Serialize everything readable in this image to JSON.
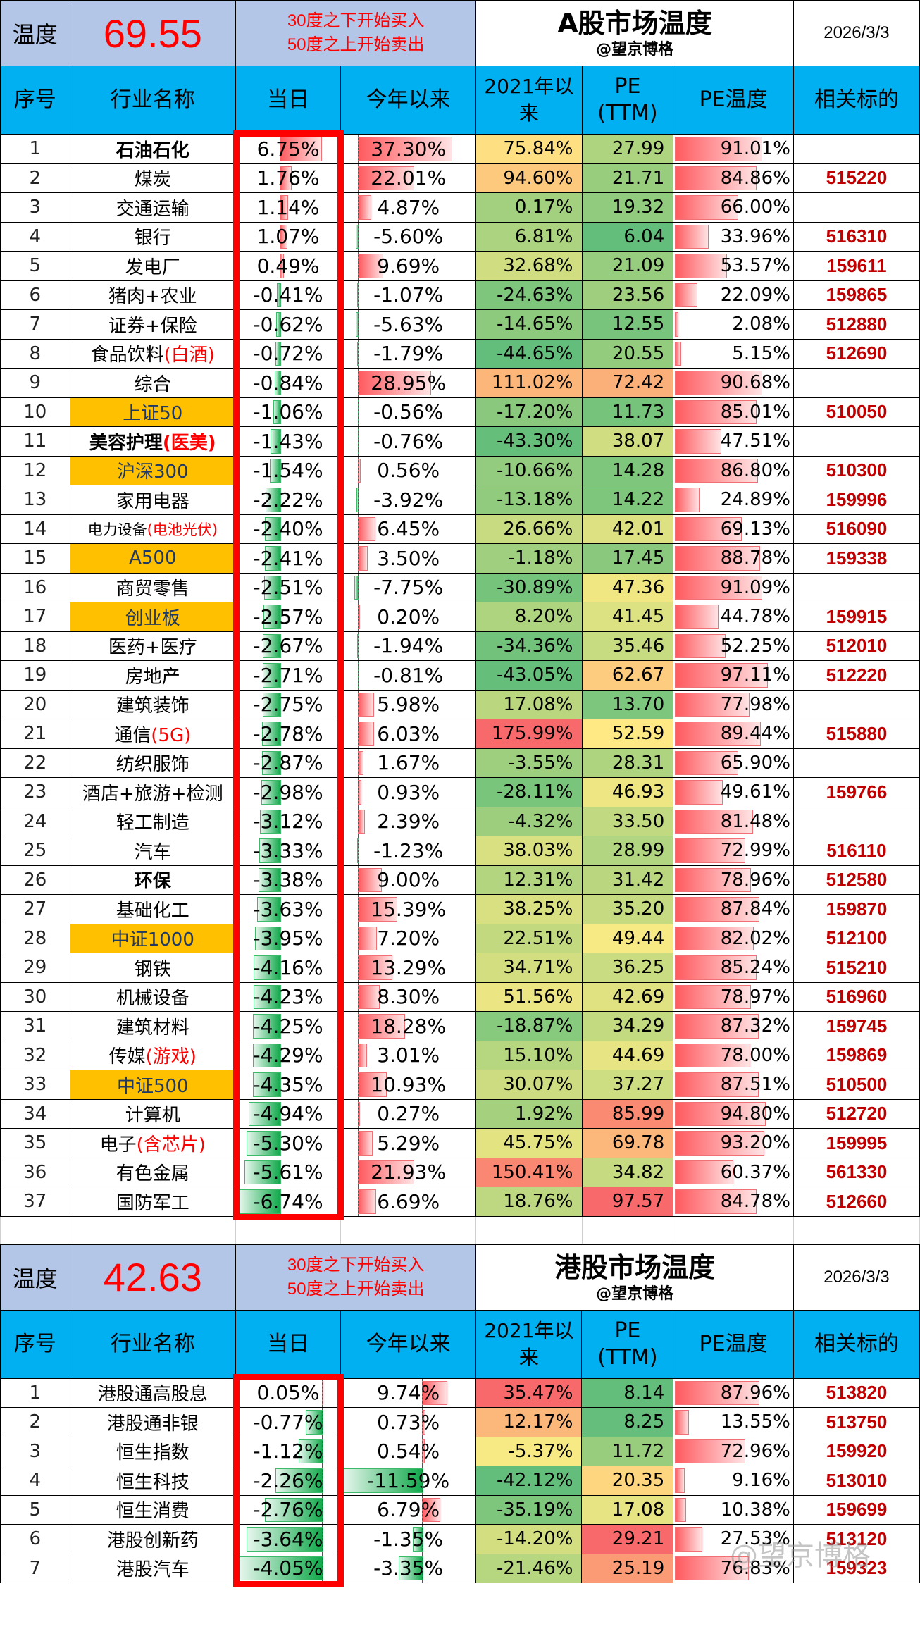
{
  "a_share": {
    "temperature_label": "温度",
    "temperature_value": "69.55",
    "rule_line1": "30度之下开始买入",
    "rule_line2": "50度之上开始卖出",
    "title": "A股市场温度",
    "subtitle": "@望京博格",
    "date": "2026/3/3",
    "headers": {
      "index": "序号",
      "name": "行业名称",
      "daily": "当日",
      "ytd": "今年以来",
      "since2021_a": "2021年以",
      "since2021_b": "来",
      "pe_a": "PE",
      "pe_b": "(TTM)",
      "pe_temp": "PE温度",
      "ticker": "相关标的"
    },
    "rows": [
      {
        "idx": "1",
        "name": "石油石化",
        "hl": "",
        "style": "bold",
        "daily": "6.75%",
        "ytd": "37.30%",
        "since2021": "75.84%",
        "pe": "27.99",
        "pe_temp": "91.01%",
        "ticker": ""
      },
      {
        "idx": "2",
        "name": "煤炭",
        "hl": "",
        "style": "",
        "daily": "1.76%",
        "ytd": "22.01%",
        "since2021": "94.60%",
        "pe": "21.71",
        "pe_temp": "84.86%",
        "ticker": "515220"
      },
      {
        "idx": "3",
        "name": "交通运输",
        "hl": "",
        "style": "",
        "daily": "1.14%",
        "ytd": "4.87%",
        "since2021": "0.17%",
        "pe": "19.32",
        "pe_temp": "66.00%",
        "ticker": ""
      },
      {
        "idx": "4",
        "name": "银行",
        "hl": "",
        "style": "",
        "daily": "1.07%",
        "ytd": "-5.60%",
        "since2021": "6.81%",
        "pe": "6.04",
        "pe_temp": "33.96%",
        "ticker": "516310"
      },
      {
        "idx": "5",
        "name": "发电厂",
        "hl": "",
        "style": "",
        "daily": "0.49%",
        "ytd": "9.69%",
        "since2021": "32.68%",
        "pe": "21.09",
        "pe_temp": "53.57%",
        "ticker": "159611"
      },
      {
        "idx": "6",
        "name": "猪肉+农业",
        "hl": "",
        "style": "",
        "daily": "-0.41%",
        "ytd": "-1.07%",
        "since2021": "-24.63%",
        "pe": "23.56",
        "pe_temp": "22.09%",
        "ticker": "159865"
      },
      {
        "idx": "7",
        "name": "证券+保险",
        "hl": "",
        "style": "",
        "daily": "-0.62%",
        "ytd": "-5.63%",
        "since2021": "-14.65%",
        "pe": "12.55",
        "pe_temp": "2.08%",
        "ticker": "512880"
      },
      {
        "idx": "8",
        "name": "食品饮料",
        "hl": "(白酒)",
        "style": "",
        "daily": "-0.72%",
        "ytd": "-1.79%",
        "since2021": "-44.65%",
        "pe": "20.55",
        "pe_temp": "5.15%",
        "ticker": "512690"
      },
      {
        "idx": "9",
        "name": "综合",
        "hl": "",
        "style": "",
        "daily": "-0.84%",
        "ytd": "28.95%",
        "since2021": "111.02%",
        "pe": "72.42",
        "pe_temp": "90.68%",
        "ticker": ""
      },
      {
        "idx": "10",
        "name": "上证50",
        "hl": "",
        "style": "index",
        "daily": "-1.06%",
        "ytd": "-0.56%",
        "since2021": "-17.20%",
        "pe": "11.73",
        "pe_temp": "85.01%",
        "ticker": "510050"
      },
      {
        "idx": "11",
        "name": "美容护理",
        "hl": "(医美)",
        "style": "bold",
        "daily": "-1.43%",
        "ytd": "-0.76%",
        "since2021": "-43.30%",
        "pe": "38.07",
        "pe_temp": "47.51%",
        "ticker": ""
      },
      {
        "idx": "12",
        "name": "沪深300",
        "hl": "",
        "style": "index",
        "daily": "-1.54%",
        "ytd": "0.56%",
        "since2021": "-10.66%",
        "pe": "14.28",
        "pe_temp": "86.80%",
        "ticker": "510300"
      },
      {
        "idx": "13",
        "name": "家用电器",
        "hl": "",
        "style": "",
        "daily": "-2.22%",
        "ytd": "-3.92%",
        "since2021": "-13.18%",
        "pe": "14.22",
        "pe_temp": "24.89%",
        "ticker": "159996"
      },
      {
        "idx": "14",
        "name": "电力设备",
        "hl": "(电池光伏)",
        "style": "small",
        "daily": "-2.40%",
        "ytd": "6.45%",
        "since2021": "26.66%",
        "pe": "42.01",
        "pe_temp": "69.13%",
        "ticker": "516090"
      },
      {
        "idx": "15",
        "name": "A500",
        "hl": "",
        "style": "index",
        "daily": "-2.41%",
        "ytd": "3.50%",
        "since2021": "-1.18%",
        "pe": "17.45",
        "pe_temp": "88.78%",
        "ticker": "159338"
      },
      {
        "idx": "16",
        "name": "商贸零售",
        "hl": "",
        "style": "",
        "daily": "-2.51%",
        "ytd": "-7.75%",
        "since2021": "-30.89%",
        "pe": "47.36",
        "pe_temp": "91.09%",
        "ticker": ""
      },
      {
        "idx": "17",
        "name": "创业板",
        "hl": "",
        "style": "index",
        "daily": "-2.57%",
        "ytd": "0.20%",
        "since2021": "8.20%",
        "pe": "41.45",
        "pe_temp": "44.78%",
        "ticker": "159915"
      },
      {
        "idx": "18",
        "name": "医药+医疗",
        "hl": "",
        "style": "",
        "daily": "-2.67%",
        "ytd": "-1.94%",
        "since2021": "-34.36%",
        "pe": "35.46",
        "pe_temp": "52.25%",
        "ticker": "512010"
      },
      {
        "idx": "19",
        "name": "房地产",
        "hl": "",
        "style": "",
        "daily": "-2.71%",
        "ytd": "-0.81%",
        "since2021": "-43.05%",
        "pe": "62.67",
        "pe_temp": "97.11%",
        "ticker": "512220"
      },
      {
        "idx": "20",
        "name": "建筑装饰",
        "hl": "",
        "style": "",
        "daily": "-2.75%",
        "ytd": "5.98%",
        "since2021": "17.08%",
        "pe": "13.70",
        "pe_temp": "77.98%",
        "ticker": ""
      },
      {
        "idx": "21",
        "name": "通信",
        "hl": "(5G)",
        "style": "",
        "daily": "-2.78%",
        "ytd": "6.03%",
        "since2021": "175.99%",
        "pe": "52.59",
        "pe_temp": "89.44%",
        "ticker": "515880"
      },
      {
        "idx": "22",
        "name": "纺织服饰",
        "hl": "",
        "style": "",
        "daily": "-2.87%",
        "ytd": "1.67%",
        "since2021": "-3.55%",
        "pe": "28.31",
        "pe_temp": "65.90%",
        "ticker": ""
      },
      {
        "idx": "23",
        "name": "酒店+旅游+检测",
        "hl": "",
        "style": "",
        "daily": "-2.98%",
        "ytd": "0.93%",
        "since2021": "-28.11%",
        "pe": "46.93",
        "pe_temp": "49.61%",
        "ticker": "159766"
      },
      {
        "idx": "24",
        "name": "轻工制造",
        "hl": "",
        "style": "",
        "daily": "-3.12%",
        "ytd": "2.39%",
        "since2021": "-4.32%",
        "pe": "33.50",
        "pe_temp": "81.48%",
        "ticker": ""
      },
      {
        "idx": "25",
        "name": "汽车",
        "hl": "",
        "style": "",
        "daily": "-3.33%",
        "ytd": "-1.23%",
        "since2021": "38.03%",
        "pe": "28.99",
        "pe_temp": "72.99%",
        "ticker": "516110"
      },
      {
        "idx": "26",
        "name": "环保",
        "hl": "",
        "style": "bold",
        "daily": "-3.38%",
        "ytd": "9.00%",
        "since2021": "12.31%",
        "pe": "31.42",
        "pe_temp": "78.96%",
        "ticker": "512580"
      },
      {
        "idx": "27",
        "name": "基础化工",
        "hl": "",
        "style": "",
        "daily": "-3.63%",
        "ytd": "15.39%",
        "since2021": "38.25%",
        "pe": "35.20",
        "pe_temp": "87.84%",
        "ticker": "159870"
      },
      {
        "idx": "28",
        "name": "中证1000",
        "hl": "",
        "style": "index",
        "daily": "-3.95%",
        "ytd": "7.20%",
        "since2021": "22.51%",
        "pe": "49.44",
        "pe_temp": "82.02%",
        "ticker": "512100"
      },
      {
        "idx": "29",
        "name": "钢铁",
        "hl": "",
        "style": "",
        "daily": "-4.16%",
        "ytd": "13.29%",
        "since2021": "34.71%",
        "pe": "36.25",
        "pe_temp": "85.24%",
        "ticker": "515210"
      },
      {
        "idx": "30",
        "name": "机械设备",
        "hl": "",
        "style": "",
        "daily": "-4.23%",
        "ytd": "8.30%",
        "since2021": "51.56%",
        "pe": "42.69",
        "pe_temp": "78.97%",
        "ticker": "516960"
      },
      {
        "idx": "31",
        "name": "建筑材料",
        "hl": "",
        "style": "",
        "daily": "-4.25%",
        "ytd": "18.28%",
        "since2021": "-18.87%",
        "pe": "34.29",
        "pe_temp": "87.32%",
        "ticker": "159745"
      },
      {
        "idx": "32",
        "name": "传媒",
        "hl": "(游戏)",
        "style": "",
        "daily": "-4.29%",
        "ytd": "3.01%",
        "since2021": "15.10%",
        "pe": "44.69",
        "pe_temp": "78.00%",
        "ticker": "159869"
      },
      {
        "idx": "33",
        "name": "中证500",
        "hl": "",
        "style": "index",
        "daily": "-4.35%",
        "ytd": "10.93%",
        "since2021": "30.07%",
        "pe": "37.27",
        "pe_temp": "87.51%",
        "ticker": "510500"
      },
      {
        "idx": "34",
        "name": "计算机",
        "hl": "",
        "style": "",
        "daily": "-4.94%",
        "ytd": "0.27%",
        "since2021": "1.92%",
        "pe": "85.99",
        "pe_temp": "94.80%",
        "ticker": "512720"
      },
      {
        "idx": "35",
        "name": "电子",
        "hl": "(含芯片)",
        "style": "",
        "daily": "-5.30%",
        "ytd": "5.29%",
        "since2021": "45.75%",
        "pe": "69.78",
        "pe_temp": "93.20%",
        "ticker": "159995"
      },
      {
        "idx": "36",
        "name": "有色金属",
        "hl": "",
        "style": "",
        "daily": "-5.61%",
        "ytd": "21.93%",
        "since2021": "150.41%",
        "pe": "34.82",
        "pe_temp": "60.37%",
        "ticker": "561330"
      },
      {
        "idx": "37",
        "name": "国防军工",
        "hl": "",
        "style": "",
        "daily": "-6.74%",
        "ytd": "6.69%",
        "since2021": "18.76%",
        "pe": "97.57",
        "pe_temp": "84.78%",
        "ticker": "512660"
      }
    ]
  },
  "hk_share": {
    "temperature_label": "温度",
    "temperature_value": "42.63",
    "rule_line1": "30度之下开始买入",
    "rule_line2": "50度之上开始卖出",
    "title": "港股市场温度",
    "subtitle": "@望京博格",
    "date": "2026/3/3",
    "headers": {
      "index": "序号",
      "name": "行业名称",
      "daily": "当日",
      "ytd": "今年以来",
      "since2021_a": "2021年以",
      "since2021_b": "来",
      "pe_a": "PE",
      "pe_b": "(TTM)",
      "pe_temp": "PE温度",
      "ticker": "相关标的"
    },
    "rows": [
      {
        "idx": "1",
        "name": "港股通高股息",
        "hl": "",
        "style": "",
        "daily": "0.05%",
        "ytd": "9.74%",
        "since2021": "35.47%",
        "pe": "8.14",
        "pe_temp": "87.96%",
        "ticker": "513820"
      },
      {
        "idx": "2",
        "name": "港股通非银",
        "hl": "",
        "style": "",
        "daily": "-0.77%",
        "ytd": "0.73%",
        "since2021": "12.17%",
        "pe": "8.25",
        "pe_temp": "13.55%",
        "ticker": "513750"
      },
      {
        "idx": "3",
        "name": "恒生指数",
        "hl": "",
        "style": "",
        "daily": "-1.12%",
        "ytd": "0.54%",
        "since2021": "-5.37%",
        "pe": "11.72",
        "pe_temp": "72.96%",
        "ticker": "159920"
      },
      {
        "idx": "4",
        "name": "恒生科技",
        "hl": "",
        "style": "",
        "daily": "-2.26%",
        "ytd": "-11.59%",
        "since2021": "-42.12%",
        "pe": "20.35",
        "pe_temp": "9.16%",
        "ticker": "513010"
      },
      {
        "idx": "5",
        "name": "恒生消费",
        "hl": "",
        "style": "",
        "daily": "-2.76%",
        "ytd": "6.79%",
        "since2021": "-35.19%",
        "pe": "17.08",
        "pe_temp": "10.38%",
        "ticker": "159699"
      },
      {
        "idx": "6",
        "name": "港股创新药",
        "hl": "",
        "style": "",
        "daily": "-3.64%",
        "ytd": "-1.35%",
        "since2021": "-14.20%",
        "pe": "29.21",
        "pe_temp": "27.53%",
        "ticker": "513120"
      },
      {
        "idx": "7",
        "name": "港股汽车",
        "hl": "",
        "style": "",
        "daily": "-4.05%",
        "ytd": "-3.35%",
        "since2021": "-21.46%",
        "pe": "25.19",
        "pe_temp": "76.83%",
        "ticker": "159323"
      }
    ]
  },
  "watermark": "@望京博格",
  "colors": {
    "temp_bg": "#b4c6e7",
    "header_bg": "#00b0f0",
    "index_name_bg": "#ffc000",
    "highlight_red": "#ff0000",
    "ticker_red": "#c00000",
    "pos_bar": "#ff5a5f",
    "neg_bar": "#10a84a"
  }
}
